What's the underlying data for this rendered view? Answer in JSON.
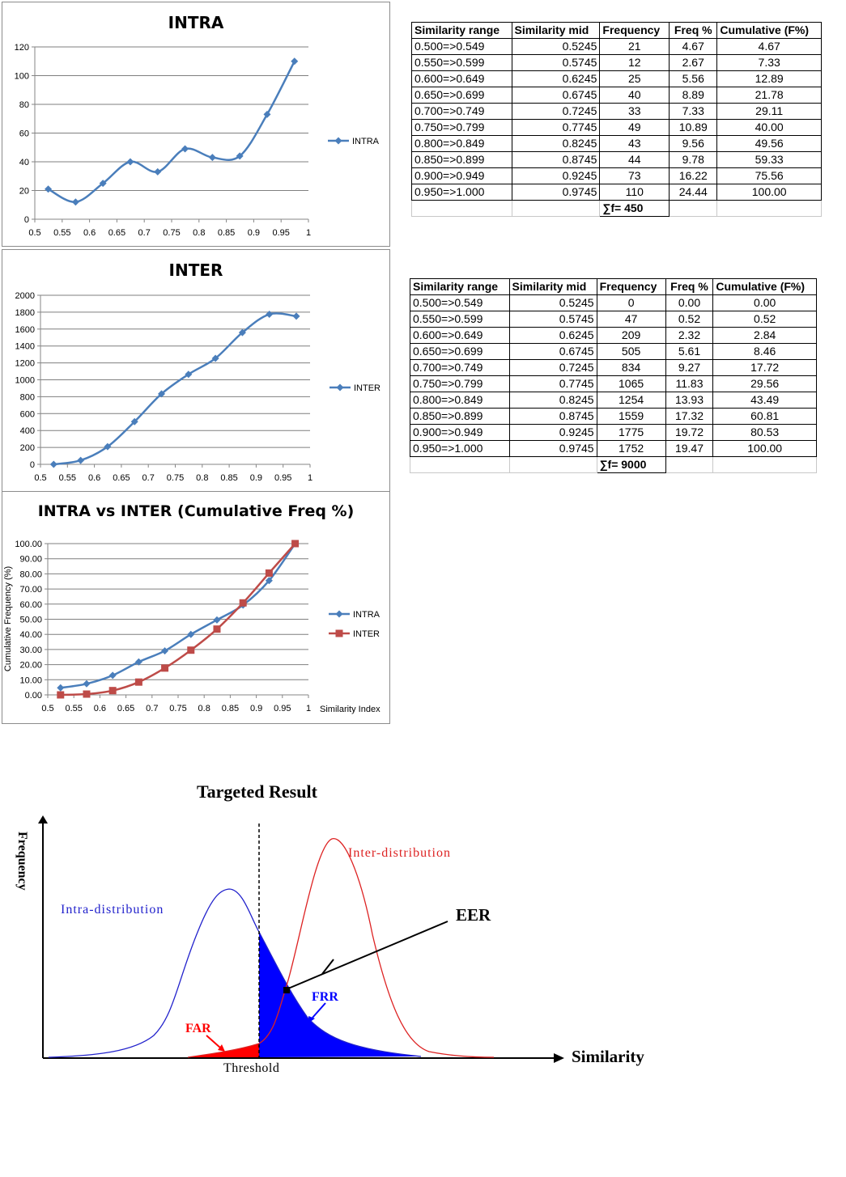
{
  "colors": {
    "intra": "#4a7ebb",
    "inter": "#be4b48",
    "grid": "#7f7f7f",
    "far": "#ff0000",
    "frr": "#0000ff",
    "intra_curve": "#2222cc",
    "inter_curve": "#dd2222"
  },
  "chart_data": [
    {
      "id": "intra",
      "type": "line",
      "title": "INTRA",
      "x": [
        0.5245,
        0.5745,
        0.6245,
        0.6745,
        0.7245,
        0.7745,
        0.8245,
        0.8745,
        0.9245,
        0.9745
      ],
      "series": [
        {
          "name": "INTRA",
          "values": [
            21,
            12,
            25,
            40,
            33,
            49,
            43,
            44,
            73,
            110
          ],
          "marker": "diamond"
        }
      ],
      "xlim": [
        0.5,
        1
      ],
      "xticks": [
        "0.5",
        "0.55",
        "0.6",
        "0.65",
        "0.7",
        "0.75",
        "0.8",
        "0.85",
        "0.9",
        "0.95",
        "1"
      ],
      "ylim": [
        0,
        120
      ],
      "yticks": [
        "0",
        "20",
        "40",
        "60",
        "80",
        "100",
        "120"
      ],
      "grid": true,
      "legend": "right"
    },
    {
      "id": "inter",
      "type": "line",
      "title": "INTER",
      "x": [
        0.5245,
        0.5745,
        0.6245,
        0.6745,
        0.7245,
        0.7745,
        0.8245,
        0.8745,
        0.9245,
        0.9745
      ],
      "series": [
        {
          "name": "INTER",
          "values": [
            0,
            47,
            209,
            505,
            834,
            1065,
            1254,
            1559,
            1775,
            1752
          ],
          "marker": "diamond"
        }
      ],
      "xlim": [
        0.5,
        1
      ],
      "xticks": [
        "0.5",
        "0.55",
        "0.6",
        "0.65",
        "0.7",
        "0.75",
        "0.8",
        "0.85",
        "0.9",
        "0.95",
        "1"
      ],
      "ylim": [
        0,
        2000
      ],
      "yticks": [
        "0",
        "200",
        "400",
        "600",
        "800",
        "1000",
        "1200",
        "1400",
        "1600",
        "1800",
        "2000"
      ],
      "grid": true,
      "legend": "right"
    },
    {
      "id": "cumulative",
      "type": "line",
      "title": "INTRA  vs  INTER (Cumulative Freq %)",
      "xlabel": "Similarity Index",
      "ylabel": "Cumulative Frequency (%)",
      "x": [
        0.5245,
        0.5745,
        0.6245,
        0.6745,
        0.7245,
        0.7745,
        0.8245,
        0.8745,
        0.9245,
        0.9745
      ],
      "series": [
        {
          "name": "INTRA",
          "values": [
            4.67,
            7.33,
            12.89,
            21.78,
            29.11,
            40.0,
            49.56,
            59.33,
            75.56,
            100.0
          ],
          "marker": "diamond"
        },
        {
          "name": "INTER",
          "values": [
            0.0,
            0.52,
            2.84,
            8.46,
            17.72,
            29.56,
            43.49,
            60.81,
            80.53,
            100.0
          ],
          "marker": "square"
        }
      ],
      "xlim": [
        0.5,
        1
      ],
      "xticks": [
        "0.5",
        "0.55",
        "0.6",
        "0.65",
        "0.7",
        "0.75",
        "0.8",
        "0.85",
        "0.9",
        "0.95",
        "1"
      ],
      "ylim": [
        0,
        100
      ],
      "yticks": [
        "0.00",
        "10.00",
        "20.00",
        "30.00",
        "40.00",
        "50.00",
        "60.00",
        "70.00",
        "80.00",
        "90.00",
        "100.00"
      ],
      "grid": true,
      "legend": "right"
    },
    {
      "id": "targeted",
      "type": "area",
      "title": "Targeted Result",
      "xlabel": "Similarity",
      "ylabel": "Frequency",
      "series": [
        {
          "name": "Intra-distribution"
        },
        {
          "name": "Inter-distribution"
        }
      ],
      "annotations": [
        "EER",
        "FRR",
        "FAR",
        "Threshold"
      ]
    }
  ],
  "tables": [
    {
      "headers": [
        "Similarity range",
        "Similarity mid",
        "Frequency",
        "Freq %",
        "Cumulative (F%)"
      ],
      "rows": [
        [
          "0.500=>0.549",
          "0.5245",
          "21",
          "4.67",
          "4.67"
        ],
        [
          "0.550=>0.599",
          "0.5745",
          "12",
          "2.67",
          "7.33"
        ],
        [
          "0.600=>0.649",
          "0.6245",
          "25",
          "5.56",
          "12.89"
        ],
        [
          "0.650=>0.699",
          "0.6745",
          "40",
          "8.89",
          "21.78"
        ],
        [
          "0.700=>0.749",
          "0.7245",
          "33",
          "7.33",
          "29.11"
        ],
        [
          "0.750=>0.799",
          "0.7745",
          "49",
          "10.89",
          "40.00"
        ],
        [
          "0.800=>0.849",
          "0.8245",
          "43",
          "9.56",
          "49.56"
        ],
        [
          "0.850=>0.899",
          "0.8745",
          "44",
          "9.78",
          "59.33"
        ],
        [
          "0.900=>0.949",
          "0.9245",
          "73",
          "16.22",
          "75.56"
        ],
        [
          "0.950=>1.000",
          "0.9745",
          "110",
          "24.44",
          "100.00"
        ]
      ],
      "sum": "∑f= 450"
    },
    {
      "headers": [
        "Similarity range",
        "Similarity mid",
        "Frequency",
        "Freq %",
        "Cumulative (F%)"
      ],
      "rows": [
        [
          "0.500=>0.549",
          "0.5245",
          "0",
          "0.00",
          "0.00"
        ],
        [
          "0.550=>0.599",
          "0.5745",
          "47",
          "0.52",
          "0.52"
        ],
        [
          "0.600=>0.649",
          "0.6245",
          "209",
          "2.32",
          "2.84"
        ],
        [
          "0.650=>0.699",
          "0.6745",
          "505",
          "5.61",
          "8.46"
        ],
        [
          "0.700=>0.749",
          "0.7245",
          "834",
          "9.27",
          "17.72"
        ],
        [
          "0.750=>0.799",
          "0.7745",
          "1065",
          "11.83",
          "29.56"
        ],
        [
          "0.800=>0.849",
          "0.8245",
          "1254",
          "13.93",
          "43.49"
        ],
        [
          "0.850=>0.899",
          "0.8745",
          "1559",
          "17.32",
          "60.81"
        ],
        [
          "0.900=>0.949",
          "0.9245",
          "1775",
          "19.72",
          "80.53"
        ],
        [
          "0.950=>1.000",
          "0.9745",
          "1752",
          "19.47",
          "100.00"
        ]
      ],
      "sum": "∑f= 9000"
    }
  ]
}
